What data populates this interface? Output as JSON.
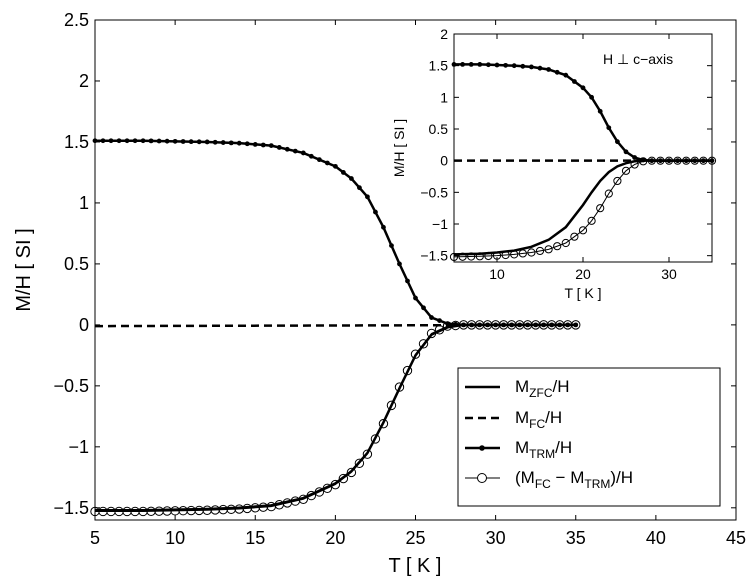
{
  "chart_data": [
    {
      "type": "line",
      "xlabel": "T [ K ]",
      "ylabel": "M/H [ SI ]",
      "xlim": [
        5,
        45
      ],
      "ylim": [
        -1.6,
        2.5
      ],
      "xticks": [
        "5",
        "10",
        "15",
        "20",
        "25",
        "30",
        "35",
        "40",
        "45"
      ],
      "yticks": [
        "2.5",
        "2",
        "1.5",
        "1",
        "0.5",
        "0",
        "−0.5",
        "−1",
        "−1.5"
      ],
      "legend_position": "bottom-right",
      "grid": false,
      "series": [
        {
          "name": "M_ZFC/H",
          "style": "solid-thick",
          "points": [
            [
              5,
              -1.52
            ],
            [
              8,
              -1.52
            ],
            [
              10,
              -1.515
            ],
            [
              12,
              -1.51
            ],
            [
              14,
              -1.5
            ],
            [
              16,
              -1.48
            ],
            [
              18,
              -1.42
            ],
            [
              20,
              -1.3
            ],
            [
              21,
              -1.2
            ],
            [
              22,
              -1.05
            ],
            [
              23,
              -0.8
            ],
            [
              24,
              -0.52
            ],
            [
              25,
              -0.25
            ],
            [
              26,
              -0.08
            ],
            [
              27,
              -0.02
            ],
            [
              28,
              0
            ],
            [
              35,
              0
            ]
          ]
        },
        {
          "name": "M_FC/H",
          "style": "dashed-thick",
          "points": [
            [
              5,
              -0.01
            ],
            [
              35,
              0.0
            ]
          ]
        },
        {
          "name": "M_TRM/H",
          "style": "solid-thick-dot",
          "points": [
            [
              5,
              1.51
            ],
            [
              8,
              1.51
            ],
            [
              10,
              1.505
            ],
            [
              12,
              1.5
            ],
            [
              14,
              1.49
            ],
            [
              16,
              1.47
            ],
            [
              18,
              1.41
            ],
            [
              20,
              1.3
            ],
            [
              21,
              1.2
            ],
            [
              22,
              1.05
            ],
            [
              23,
              0.8
            ],
            [
              24,
              0.5
            ],
            [
              25,
              0.22
            ],
            [
              26,
              0.06
            ],
            [
              27,
              0.01
            ],
            [
              28,
              0
            ],
            [
              35,
              0
            ]
          ]
        },
        {
          "name": "(M_FC − M_TRM)/H",
          "style": "thin-open-circle",
          "points": [
            [
              5,
              -1.53
            ],
            [
              8,
              -1.53
            ],
            [
              10,
              -1.525
            ],
            [
              12,
              -1.52
            ],
            [
              14,
              -1.51
            ],
            [
              16,
              -1.49
            ],
            [
              18,
              -1.43
            ],
            [
              20,
              -1.31
            ],
            [
              21,
              -1.21
            ],
            [
              22,
              -1.06
            ],
            [
              23,
              -0.81
            ],
            [
              24,
              -0.51
            ],
            [
              25,
              -0.24
            ],
            [
              26,
              -0.07
            ],
            [
              27,
              -0.01
            ],
            [
              28,
              0
            ],
            [
              35,
              0
            ]
          ]
        }
      ]
    },
    {
      "type": "line",
      "annotation": "H  ⊥ c−axis",
      "xlabel": "T [ K ]",
      "ylabel": "M/H [ SI ]",
      "xlim": [
        5,
        35
      ],
      "ylim": [
        -1.6,
        2.0
      ],
      "xticks": [
        "10",
        "20",
        "30"
      ],
      "yticks": [
        "2",
        "1.5",
        "1",
        "0.5",
        "0",
        "−0.5",
        "−1",
        "−1.5"
      ],
      "series": [
        {
          "name": "M_ZFC/H",
          "style": "solid-thick",
          "points": [
            [
              5,
              -1.48
            ],
            [
              8,
              -1.47
            ],
            [
              10,
              -1.45
            ],
            [
              12,
              -1.42
            ],
            [
              14,
              -1.36
            ],
            [
              16,
              -1.25
            ],
            [
              18,
              -1.05
            ],
            [
              20,
              -0.7
            ],
            [
              21,
              -0.5
            ],
            [
              22,
              -0.32
            ],
            [
              23,
              -0.18
            ],
            [
              24,
              -0.09
            ],
            [
              25,
              -0.04
            ],
            [
              26,
              -0.01
            ],
            [
              27,
              0
            ],
            [
              35,
              0
            ]
          ]
        },
        {
          "name": "M_FC/H",
          "style": "dashed-thick",
          "points": [
            [
              5,
              0
            ],
            [
              35,
              0
            ]
          ]
        },
        {
          "name": "M_TRM/H",
          "style": "solid-thick-dot",
          "points": [
            [
              5,
              1.52
            ],
            [
              8,
              1.52
            ],
            [
              10,
              1.51
            ],
            [
              12,
              1.5
            ],
            [
              14,
              1.48
            ],
            [
              16,
              1.44
            ],
            [
              18,
              1.35
            ],
            [
              20,
              1.15
            ],
            [
              21,
              1.0
            ],
            [
              22,
              0.78
            ],
            [
              23,
              0.52
            ],
            [
              24,
              0.3
            ],
            [
              25,
              0.14
            ],
            [
              26,
              0.05
            ],
            [
              27,
              0.01
            ],
            [
              28,
              0
            ],
            [
              35,
              0
            ]
          ]
        },
        {
          "name": "(M_FC − M_TRM)/H",
          "style": "thin-open-circle",
          "points": [
            [
              5,
              -1.52
            ],
            [
              8,
              -1.51
            ],
            [
              10,
              -1.5
            ],
            [
              12,
              -1.48
            ],
            [
              14,
              -1.45
            ],
            [
              16,
              -1.4
            ],
            [
              18,
              -1.3
            ],
            [
              20,
              -1.1
            ],
            [
              21,
              -0.95
            ],
            [
              22,
              -0.75
            ],
            [
              23,
              -0.52
            ],
            [
              24,
              -0.32
            ],
            [
              25,
              -0.16
            ],
            [
              26,
              -0.06
            ],
            [
              27,
              -0.01
            ],
            [
              28,
              0
            ],
            [
              35,
              0
            ]
          ]
        }
      ]
    }
  ],
  "legend": {
    "items": [
      {
        "base": "M",
        "sub": "ZFC",
        "tail": "/H"
      },
      {
        "base": "M",
        "sub": "FC",
        "tail": "/H"
      },
      {
        "base": "M",
        "sub": "TRM",
        "tail": "/H"
      },
      {
        "pre": "(M",
        "sub1": "FC",
        "mid": " − M",
        "sub2": "TRM",
        "tail": ")/H"
      }
    ]
  }
}
